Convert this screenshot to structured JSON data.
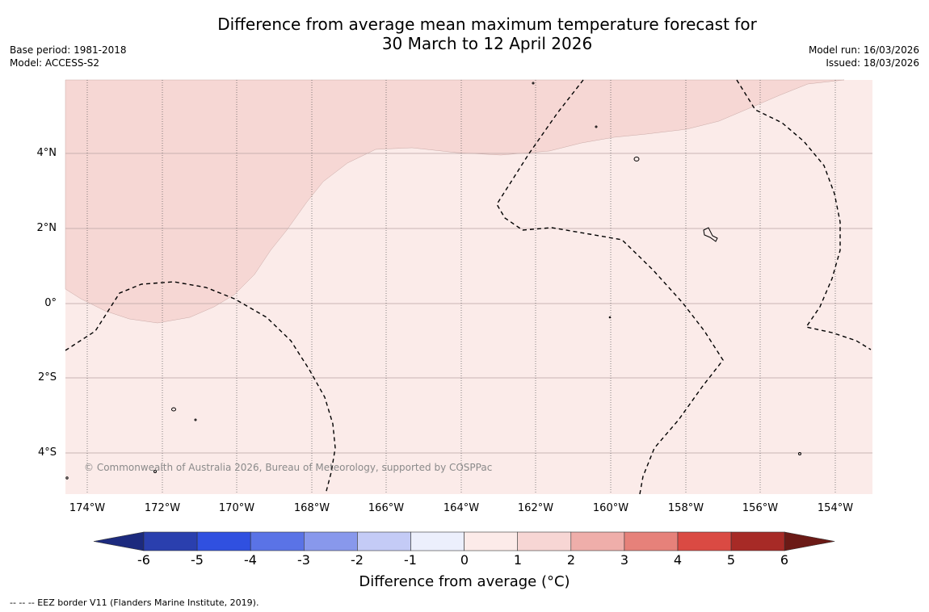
{
  "title_line1": "Difference from average mean maximum temperature forecast for",
  "title_line2": "30 March to 12 April 2026",
  "meta_left": {
    "base_period": "Base period: 1981-2018",
    "model": "Model: ACCESS-S2"
  },
  "meta_right": {
    "model_run": "Model run: 16/03/2026",
    "issued": "Issued: 18/03/2026"
  },
  "copyright": "© Commonwealth of Australia 2026, Bureau of Meteorology, supported by COSPPac",
  "lat_labels": [
    "4°N",
    "2°N",
    "0°",
    "2°S",
    "4°S"
  ],
  "lon_labels": [
    "174°W",
    "172°W",
    "170°W",
    "168°W",
    "166°W",
    "164°W",
    "162°W",
    "160°W",
    "158°W",
    "156°W",
    "154°W"
  ],
  "colorbar": {
    "title": "Difference from average (°C)",
    "labels": [
      "-6",
      "-5",
      "-4",
      "-3",
      "-2",
      "-1",
      "0",
      "1",
      "2",
      "3",
      "4",
      "5",
      "6"
    ],
    "colors": [
      "#1c2a7e",
      "#2a3fae",
      "#3050e0",
      "#5a73e6",
      "#8898ec",
      "#c4cbf6",
      "#eceffc",
      "#fcebe9",
      "#f7d6d4",
      "#efaeaa",
      "#e6817a",
      "#da4a43",
      "#a72a26",
      "#6b1a16"
    ]
  },
  "fill_colors": {
    "band_1_2": "#f6d7d4",
    "band_0_1": "#fbebe9"
  },
  "footer": "--  --  -- EEZ border V11 (Flanders Marine Institute, 2019)."
}
